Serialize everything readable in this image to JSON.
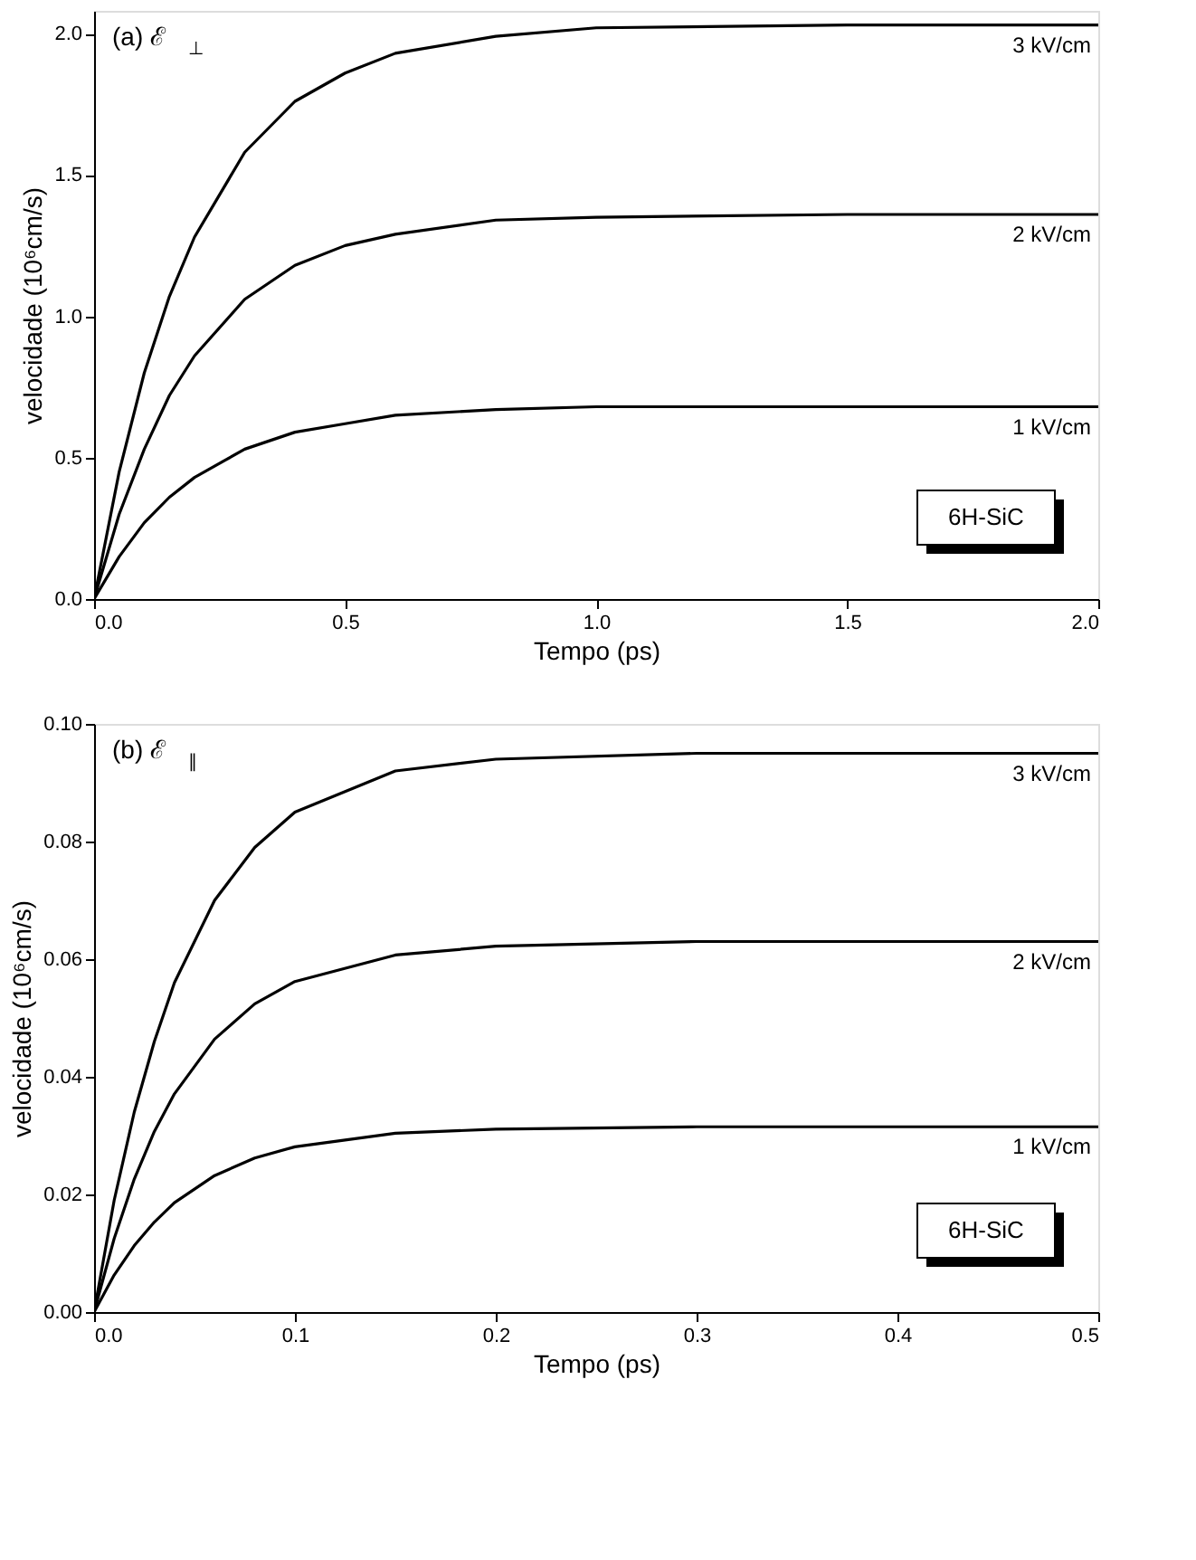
{
  "chart_data": [
    {
      "type": "line",
      "xlabel": "Tempo (ps)",
      "ylabel": "velocidade (10⁶cm/s)",
      "xlim": [
        0,
        2
      ],
      "ylim": [
        0,
        2.08
      ],
      "xticks": [
        {
          "value": 0,
          "label": "0.0"
        },
        {
          "value": 0.5,
          "label": "0.5"
        },
        {
          "value": 1,
          "label": "1.0"
        },
        {
          "value": 1.5,
          "label": "1.5"
        },
        {
          "value": 2,
          "label": "2.0"
        }
      ],
      "yticks": [
        {
          "value": 0,
          "label": "0.0"
        },
        {
          "value": 0.5,
          "label": "0.5"
        },
        {
          "value": 1,
          "label": "1.0"
        },
        {
          "value": 1.5,
          "label": "1.5"
        },
        {
          "value": 2,
          "label": "2.0"
        }
      ],
      "x": [
        0,
        0.05,
        0.1,
        0.15,
        0.2,
        0.3,
        0.4,
        0.5,
        0.6,
        0.8,
        1.0,
        1.5,
        2.0
      ],
      "series": [
        {
          "name": "3 kV/cm",
          "color": "#000000",
          "values": [
            0,
            0.45,
            0.8,
            1.07,
            1.28,
            1.58,
            1.76,
            1.86,
            1.93,
            1.99,
            2.02,
            2.03,
            2.03
          ]
        },
        {
          "name": "2 kV/cm",
          "color": "#000000",
          "values": [
            0,
            0.3,
            0.53,
            0.72,
            0.86,
            1.06,
            1.18,
            1.25,
            1.29,
            1.34,
            1.35,
            1.36,
            1.36
          ]
        },
        {
          "name": "1 kV/cm",
          "color": "#000000",
          "values": [
            0,
            0.15,
            0.27,
            0.36,
            0.43,
            0.53,
            0.59,
            0.62,
            0.65,
            0.67,
            0.68,
            0.68,
            0.68
          ]
        }
      ],
      "annotations": [
        "(a) ℰ$_{⊥}$",
        "6H-SiC"
      ]
    },
    {
      "type": "line",
      "xlabel": "Tempo (ps)",
      "ylabel": "velocidade (10⁶cm/s)",
      "xlim": [
        0,
        0.5
      ],
      "ylim": [
        0,
        0.1
      ],
      "xticks": [
        {
          "value": 0,
          "label": "0.0"
        },
        {
          "value": 0.1,
          "label": "0.1"
        },
        {
          "value": 0.2,
          "label": "0.2"
        },
        {
          "value": 0.3,
          "label": "0.3"
        },
        {
          "value": 0.4,
          "label": "0.4"
        },
        {
          "value": 0.5,
          "label": "0.5"
        }
      ],
      "yticks": [
        {
          "value": 0,
          "label": "0.00"
        },
        {
          "value": 0.02,
          "label": "0.02"
        },
        {
          "value": 0.04,
          "label": "0.04"
        },
        {
          "value": 0.06,
          "label": "0.06"
        },
        {
          "value": 0.08,
          "label": "0.08"
        },
        {
          "value": 0.1,
          "label": "0.10"
        }
      ],
      "x": [
        0,
        0.01,
        0.02,
        0.03,
        0.04,
        0.06,
        0.08,
        0.1,
        0.15,
        0.2,
        0.3,
        0.4,
        0.5
      ],
      "series": [
        {
          "name": "3 kV/cm",
          "color": "#000000",
          "values": [
            0,
            0.019,
            0.034,
            0.046,
            0.056,
            0.07,
            0.079,
            0.085,
            0.092,
            0.094,
            0.095,
            0.095,
            0.095
          ]
        },
        {
          "name": "2 kV/cm",
          "color": "#000000",
          "values": [
            0,
            0.0125,
            0.0226,
            0.0307,
            0.0371,
            0.0464,
            0.0524,
            0.0562,
            0.0607,
            0.0622,
            0.063,
            0.063,
            0.063
          ]
        },
        {
          "name": "1 kV/cm",
          "color": "#000000",
          "values": [
            0,
            0.0063,
            0.0113,
            0.0153,
            0.0186,
            0.0232,
            0.0262,
            0.0281,
            0.0304,
            0.0311,
            0.0315,
            0.0315,
            0.0315
          ]
        }
      ],
      "annotations": [
        "(b) ℰ$_{∥}$",
        "6H-SiC"
      ]
    }
  ]
}
